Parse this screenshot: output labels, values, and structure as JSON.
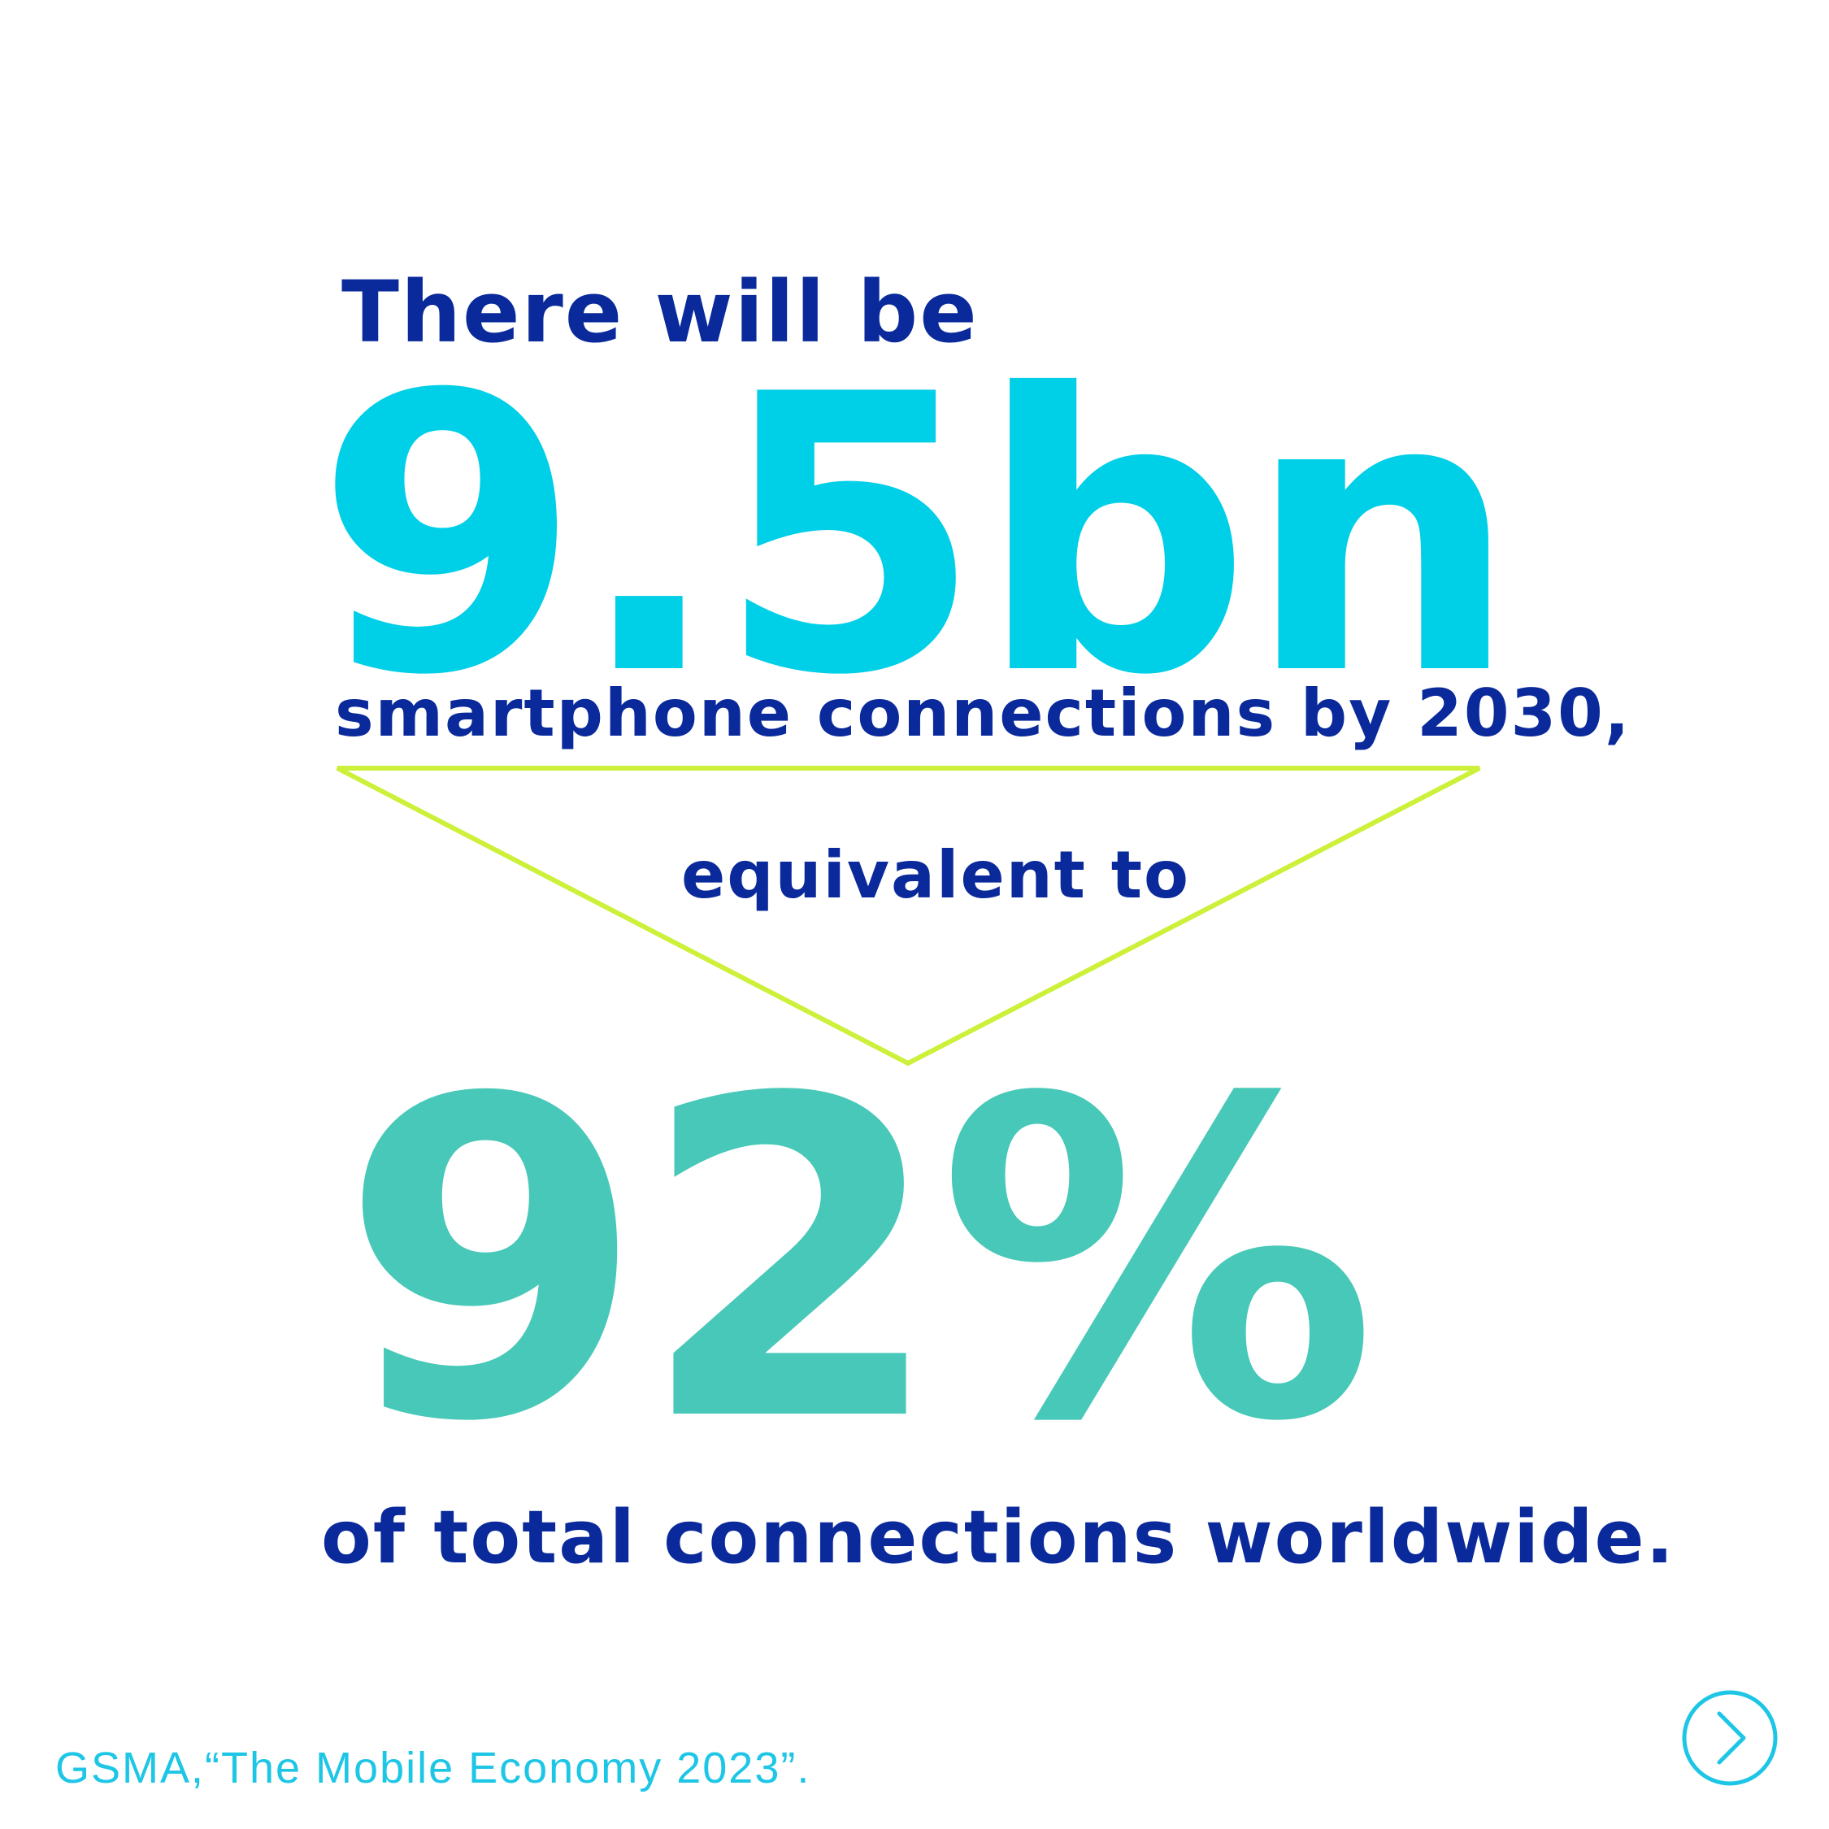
{
  "intro_text": "There will be",
  "big_number": "9.5bn",
  "subtitle_1": "smartphone connections by 2030,",
  "subtitle_2": "equivalent to",
  "big_percent": "92%",
  "subtitle_3": "of total connections worldwide.",
  "source": "GSMA,“The Mobile Economy 2023”.",
  "next_icon": "chevron-right-circle-icon",
  "colors": {
    "navy": "#0a2a9b",
    "cyan": "#00cfe8",
    "teal": "#48c8b8",
    "lime": "#cdf03a",
    "source_cyan": "#1ec6e6"
  }
}
